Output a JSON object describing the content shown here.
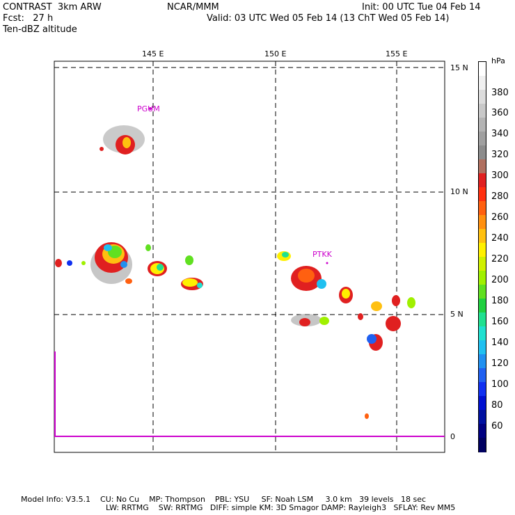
{
  "header": {
    "model_title": "CONTRAST  3km ARW",
    "center": "NCAR/MMM",
    "init": "Init: 00 UTC Tue 04 Feb 14",
    "forecast": "Fcst:   27 h",
    "valid": "Valid: 03 UTC Wed 05 Feb 14 (13 ChT Wed 05 Feb 14)",
    "field": "Ten-dBZ altitude"
  },
  "map": {
    "lon_labels": [
      "145 E",
      "150 E",
      "155 E"
    ],
    "lat_labels": [
      "15 N",
      "10 N",
      "5 N",
      "0"
    ],
    "stations": [
      "PGUM",
      "PTKK"
    ],
    "grid_color": "#000000",
    "station_color": "#cc00cc"
  },
  "colorbar": {
    "unit": "hPa",
    "labels": [
      "380",
      "360",
      "340",
      "320",
      "300",
      "280",
      "260",
      "240",
      "220",
      "200",
      "180",
      "160",
      "140",
      "120",
      "100",
      "80",
      "60"
    ],
    "colors": [
      "#ffffff",
      "#f0f0f0",
      "#dcdcdc",
      "#c8c8c8",
      "#b4b4b4",
      "#a0a0a0",
      "#8c8c8c",
      "#b07060",
      "#e02020",
      "#ff3010",
      "#ff6010",
      "#ff9010",
      "#ffc010",
      "#fff000",
      "#d0f000",
      "#a0f000",
      "#60e020",
      "#20d040",
      "#20e090",
      "#20e0d0",
      "#20c0f0",
      "#2090f0",
      "#2060f0",
      "#1030f0",
      "#0010d0",
      "#0010a0",
      "#000080",
      "#000060"
    ]
  },
  "footer": {
    "line1": "Model Info: V3.5.1    CU: No Cu    MP: Thompson    PBL: YSU     SF: Noah LSM     3.0 km   39 levels   18 sec",
    "line2": "LW: RRTMG    SW: RRTMG   DIFF: simple KM: 3D Smagor DAMP: Rayleigh3   SFLAY: Rev MM5"
  }
}
